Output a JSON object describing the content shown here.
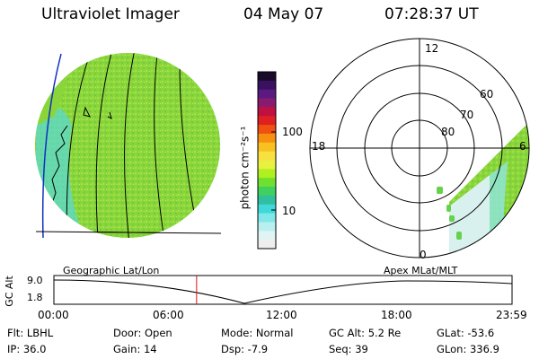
{
  "header": {
    "instrument": "Ultraviolet Imager",
    "date": "04 May 07",
    "time": "07:28:37 UT"
  },
  "colorbar": {
    "unit_label": "photon cm⁻²s⁻¹",
    "ticks": [
      "100",
      "10"
    ],
    "colors": [
      "#1a0a2a",
      "#3a1060",
      "#5a1a80",
      "#8a1a70",
      "#c01040",
      "#e02020",
      "#f05010",
      "#f59010",
      "#f8c020",
      "#f8e040",
      "#e8f040",
      "#b0f020",
      "#70e030",
      "#40d060",
      "#30c0a0",
      "#40d8d8",
      "#80e8e8",
      "#b8f0f0",
      "#e0f4f4",
      "#eeeeee"
    ]
  },
  "polar": {
    "mlt_labels": {
      "top": "12",
      "left": "18",
      "right": "6",
      "bottom": "0"
    },
    "lat_labels": [
      "60",
      "70",
      "80"
    ]
  },
  "orbit": {
    "ylabel": "GC Alt",
    "y_ticks": [
      "9.0",
      "1.8"
    ],
    "left_caption": "Geographic Lat/Lon",
    "right_caption": "Apex MLat/MLT",
    "x_ticks": [
      "00:00",
      "06:00",
      "12:00",
      "18:00",
      "23:59"
    ],
    "current_time_hours": 7.475
  },
  "status": {
    "flt": "Flt: LBHL",
    "ip": "IP: 36.0",
    "door": "Door: Open",
    "gain": "Gain: 14",
    "mode": "Mode: Normal",
    "dsp": "Dsp:   -7.9",
    "gcalt": "GC Alt: 5.2 Re",
    "seq": "Seq: 39",
    "glat": "GLat: -53.6",
    "glon": "GLon: 336.9"
  }
}
